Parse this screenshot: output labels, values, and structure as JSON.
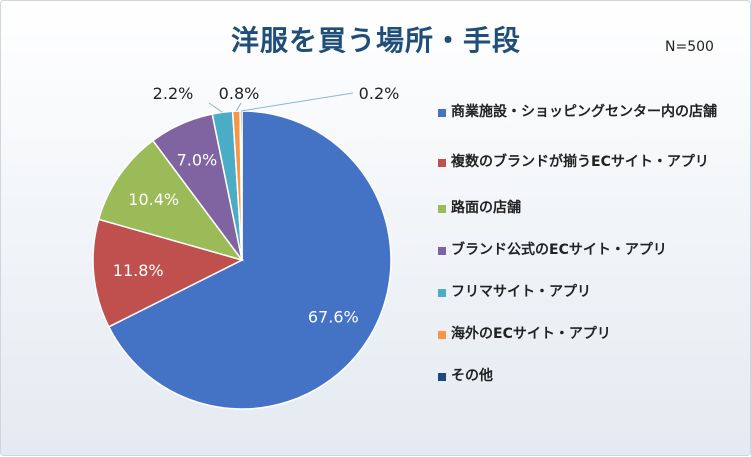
{
  "header": {
    "title": "洋服を買う場所・手段",
    "sample_size": "N=500"
  },
  "chart_data": {
    "type": "pie",
    "title": "洋服を買う場所・手段",
    "slices": [
      {
        "label": "商業施設・ショッピングセンター内の店舗",
        "value": 67.6,
        "data_label": "67.6%",
        "color": "#4472c4"
      },
      {
        "label": "複数のブランドが揃うECサイト・アプリ",
        "value": 11.8,
        "data_label": "11.8%",
        "color": "#c0504d"
      },
      {
        "label": "路面の店舗",
        "value": 10.4,
        "data_label": "10.4%",
        "color": "#9bbb59"
      },
      {
        "label": "ブランド公式のECサイト・アプリ",
        "value": 7.0,
        "data_label": "7.0%",
        "color": "#8064a2"
      },
      {
        "label": "フリマサイト・アプリ",
        "value": 2.2,
        "data_label": "2.2%",
        "color": "#4bacc6"
      },
      {
        "label": "海外のECサイト・アプリ",
        "value": 0.8,
        "data_label": "0.8%",
        "color": "#f79646"
      },
      {
        "label": "その他",
        "value": 0.2,
        "data_label": "0.2%",
        "color": "#1f497d"
      }
    ],
    "legend_position": "right",
    "start_angle": "top, clockwise"
  }
}
